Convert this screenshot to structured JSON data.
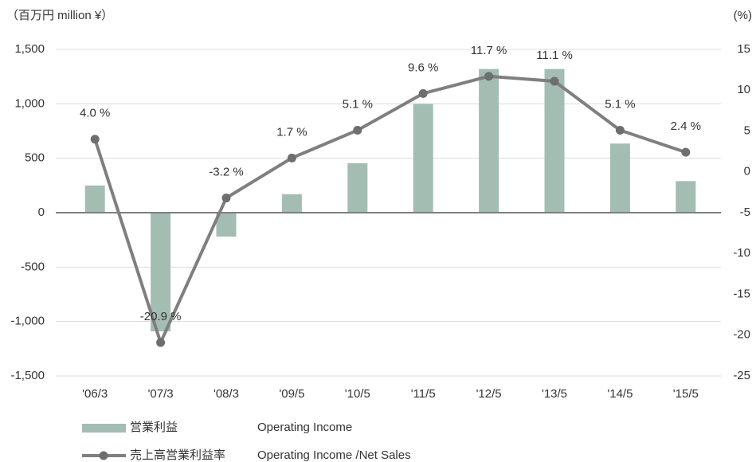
{
  "chart_data": {
    "type": "bar_line",
    "y_label": "（百万円  million ¥）",
    "y2_label": "(%)",
    "categories": [
      "'06/3",
      "'07/3",
      "'08/3",
      "'09/5",
      "'10/5",
      "'11/5",
      "'12/5",
      "'13/5",
      "'14/5",
      "'15/5"
    ],
    "series": [
      {
        "name": "営業利益",
        "name_en": "Operating Income",
        "color": "#a3bdb3",
        "type": "bar",
        "values": [
          250,
          -1090,
          -220,
          170,
          455,
          1000,
          1320,
          1320,
          635,
          290
        ]
      },
      {
        "name": "売上高営業利益率",
        "name_en": "Operating Income /Net Sales",
        "color": "#7f7f7f",
        "type": "line",
        "axis": "y2",
        "values": [
          4.0,
          -20.9,
          -3.2,
          1.7,
          5.1,
          9.6,
          11.7,
          11.1,
          5.1,
          2.4
        ],
        "value_labels": [
          "4.0 %",
          "-20.9 %",
          "-3.2 %",
          "1.7 %",
          "5.1 %",
          "9.6 %",
          "11.7 %",
          "11.1 %",
          "5.1 %",
          "2.4 %"
        ]
      }
    ],
    "ylim": [
      -1500,
      1500
    ],
    "yticks": [
      {
        "value": 1500,
        "label": "1,500"
      },
      {
        "value": 1000,
        "label": "1,000"
      },
      500,
      0,
      -500,
      {
        "value": -1000,
        "label": "-1,000"
      },
      {
        "value": -1500,
        "label": "-1,500"
      }
    ],
    "y2lim": [
      -25,
      15
    ],
    "y2ticks": [
      15,
      10,
      5,
      0,
      -5,
      -10,
      -15,
      -20,
      -25
    ],
    "grid": true
  }
}
